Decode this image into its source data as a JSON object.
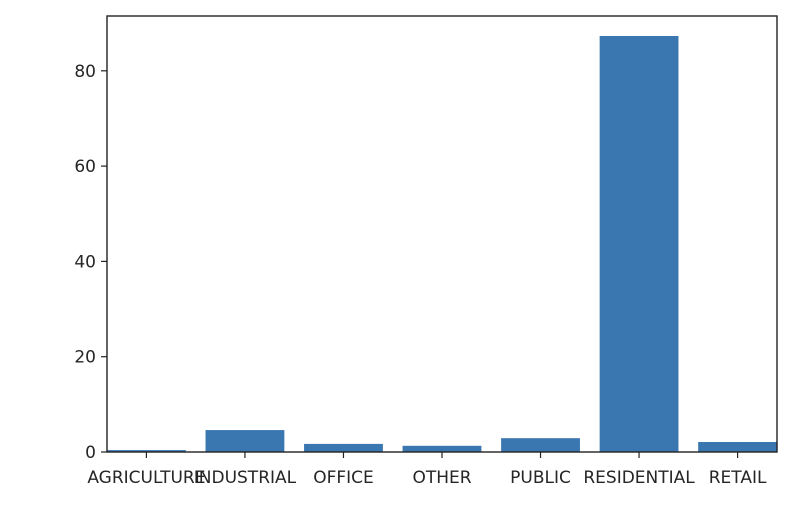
{
  "chart_data": {
    "type": "bar",
    "title": "",
    "xlabel": "",
    "ylabel": "",
    "categories": [
      "AGRICULTURE",
      "INDUSTRIAL",
      "OFFICE",
      "OTHER",
      "PUBLIC",
      "RESIDENTIAL",
      "RETAIL"
    ],
    "values": [
      0.4,
      4.6,
      1.7,
      1.3,
      2.9,
      87.3,
      2.1
    ],
    "ylim": [
      0,
      91.5
    ],
    "yticks": [
      0,
      20,
      40,
      60,
      80
    ],
    "grid": false,
    "legend": "none",
    "bar_color": "#3a76af"
  }
}
